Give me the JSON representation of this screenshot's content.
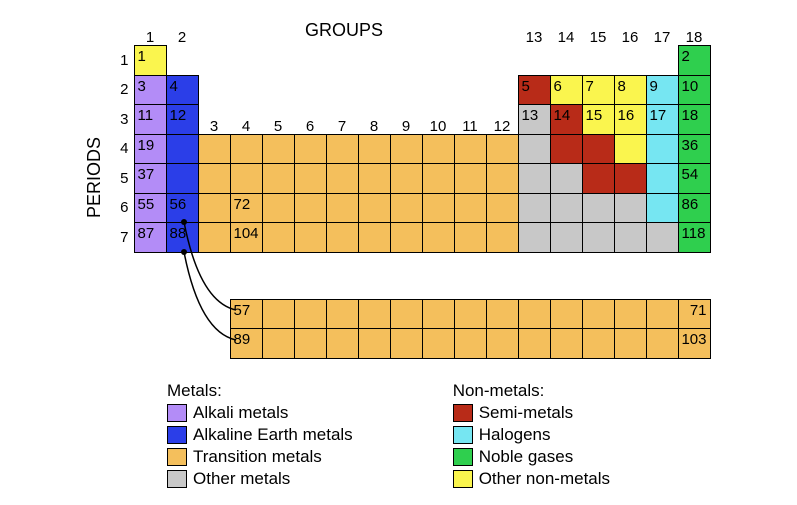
{
  "labels": {
    "groups": "GROUPS",
    "periods": "PERIODS"
  },
  "cell_size": {
    "w": 33,
    "h": 30.5
  },
  "colors": {
    "alkali": "#b38cf7",
    "alkaline": "#2b3ee8",
    "transition": "#f4bf5c",
    "other_metal": "#c8c8c8",
    "semi_metal": "#b82b18",
    "halogen": "#76e6f2",
    "noble": "#2fcf4e",
    "other_nonmetal": "#faf54e",
    "none": "transparent",
    "border": "#000000",
    "bg": "#ffffff",
    "text": "#000000"
  },
  "group_headers": [
    {
      "col": 1,
      "label": "1"
    },
    {
      "col": 2,
      "label": "2"
    },
    {
      "col": 13,
      "label": "13"
    },
    {
      "col": 14,
      "label": "14"
    },
    {
      "col": 15,
      "label": "15"
    },
    {
      "col": 16,
      "label": "16"
    },
    {
      "col": 17,
      "label": "17"
    },
    {
      "col": 18,
      "label": "18"
    }
  ],
  "group_headers_row3": [
    {
      "col": 3,
      "label": "3"
    },
    {
      "col": 4,
      "label": "4"
    },
    {
      "col": 5,
      "label": "5"
    },
    {
      "col": 6,
      "label": "6"
    },
    {
      "col": 7,
      "label": "7"
    },
    {
      "col": 8,
      "label": "8"
    },
    {
      "col": 9,
      "label": "9"
    },
    {
      "col": 10,
      "label": "10"
    },
    {
      "col": 11,
      "label": "11"
    },
    {
      "col": 12,
      "label": "12"
    }
  ],
  "period_headers": [
    "1",
    "2",
    "3",
    "4",
    "5",
    "6",
    "7"
  ],
  "table": [
    [
      {
        "c": "other_nonmetal",
        "t": "1"
      },
      null,
      null,
      null,
      null,
      null,
      null,
      null,
      null,
      null,
      null,
      null,
      null,
      null,
      null,
      null,
      null,
      {
        "c": "noble",
        "t": "2"
      }
    ],
    [
      {
        "c": "alkali",
        "t": "3"
      },
      {
        "c": "alkaline",
        "t": "4"
      },
      null,
      null,
      null,
      null,
      null,
      null,
      null,
      null,
      null,
      null,
      {
        "c": "semi_metal",
        "t": "5"
      },
      {
        "c": "other_nonmetal",
        "t": "6"
      },
      {
        "c": "other_nonmetal",
        "t": "7"
      },
      {
        "c": "other_nonmetal",
        "t": "8"
      },
      {
        "c": "halogen",
        "t": "9"
      },
      {
        "c": "noble",
        "t": "10"
      }
    ],
    [
      {
        "c": "alkali",
        "t": "11"
      },
      {
        "c": "alkaline",
        "t": "12"
      },
      null,
      null,
      null,
      null,
      null,
      null,
      null,
      null,
      null,
      null,
      {
        "c": "other_metal",
        "t": "13"
      },
      {
        "c": "semi_metal",
        "t": "14"
      },
      {
        "c": "other_nonmetal",
        "t": "15"
      },
      {
        "c": "other_nonmetal",
        "t": "16"
      },
      {
        "c": "halogen",
        "t": "17"
      },
      {
        "c": "noble",
        "t": "18"
      }
    ],
    [
      {
        "c": "alkali",
        "t": "19"
      },
      {
        "c": "alkaline",
        "t": ""
      },
      {
        "c": "transition",
        "t": ""
      },
      {
        "c": "transition",
        "t": ""
      },
      {
        "c": "transition",
        "t": ""
      },
      {
        "c": "transition",
        "t": ""
      },
      {
        "c": "transition",
        "t": ""
      },
      {
        "c": "transition",
        "t": ""
      },
      {
        "c": "transition",
        "t": ""
      },
      {
        "c": "transition",
        "t": ""
      },
      {
        "c": "transition",
        "t": ""
      },
      {
        "c": "transition",
        "t": ""
      },
      {
        "c": "other_metal",
        "t": ""
      },
      {
        "c": "semi_metal",
        "t": ""
      },
      {
        "c": "semi_metal",
        "t": ""
      },
      {
        "c": "other_nonmetal",
        "t": ""
      },
      {
        "c": "halogen",
        "t": ""
      },
      {
        "c": "noble",
        "t": "36"
      }
    ],
    [
      {
        "c": "alkali",
        "t": "37"
      },
      {
        "c": "alkaline",
        "t": ""
      },
      {
        "c": "transition",
        "t": ""
      },
      {
        "c": "transition",
        "t": ""
      },
      {
        "c": "transition",
        "t": ""
      },
      {
        "c": "transition",
        "t": ""
      },
      {
        "c": "transition",
        "t": ""
      },
      {
        "c": "transition",
        "t": ""
      },
      {
        "c": "transition",
        "t": ""
      },
      {
        "c": "transition",
        "t": ""
      },
      {
        "c": "transition",
        "t": ""
      },
      {
        "c": "transition",
        "t": ""
      },
      {
        "c": "other_metal",
        "t": ""
      },
      {
        "c": "other_metal",
        "t": ""
      },
      {
        "c": "semi_metal",
        "t": ""
      },
      {
        "c": "semi_metal",
        "t": ""
      },
      {
        "c": "halogen",
        "t": ""
      },
      {
        "c": "noble",
        "t": "54"
      }
    ],
    [
      {
        "c": "alkali",
        "t": "55"
      },
      {
        "c": "alkaline",
        "t": "56"
      },
      {
        "c": "transition",
        "t": ""
      },
      {
        "c": "transition",
        "t": "72"
      },
      {
        "c": "transition",
        "t": ""
      },
      {
        "c": "transition",
        "t": ""
      },
      {
        "c": "transition",
        "t": ""
      },
      {
        "c": "transition",
        "t": ""
      },
      {
        "c": "transition",
        "t": ""
      },
      {
        "c": "transition",
        "t": ""
      },
      {
        "c": "transition",
        "t": ""
      },
      {
        "c": "transition",
        "t": ""
      },
      {
        "c": "other_metal",
        "t": ""
      },
      {
        "c": "other_metal",
        "t": ""
      },
      {
        "c": "other_metal",
        "t": ""
      },
      {
        "c": "other_metal",
        "t": ""
      },
      {
        "c": "halogen",
        "t": ""
      },
      {
        "c": "noble",
        "t": "86"
      }
    ],
    [
      {
        "c": "alkali",
        "t": "87"
      },
      {
        "c": "alkaline",
        "t": "88"
      },
      {
        "c": "transition",
        "t": ""
      },
      {
        "c": "transition",
        "t": "104"
      },
      {
        "c": "transition",
        "t": ""
      },
      {
        "c": "transition",
        "t": ""
      },
      {
        "c": "transition",
        "t": ""
      },
      {
        "c": "transition",
        "t": ""
      },
      {
        "c": "transition",
        "t": ""
      },
      {
        "c": "transition",
        "t": ""
      },
      {
        "c": "transition",
        "t": ""
      },
      {
        "c": "transition",
        "t": ""
      },
      {
        "c": "other_metal",
        "t": ""
      },
      {
        "c": "other_metal",
        "t": ""
      },
      {
        "c": "other_metal",
        "t": ""
      },
      {
        "c": "other_metal",
        "t": ""
      },
      {
        "c": "other_metal",
        "t": ""
      },
      {
        "c": "noble",
        "t": "118"
      }
    ]
  ],
  "fblock": [
    [
      {
        "c": "transition",
        "t": "57"
      },
      {
        "c": "transition",
        "t": ""
      },
      {
        "c": "transition",
        "t": ""
      },
      {
        "c": "transition",
        "t": ""
      },
      {
        "c": "transition",
        "t": ""
      },
      {
        "c": "transition",
        "t": ""
      },
      {
        "c": "transition",
        "t": ""
      },
      {
        "c": "transition",
        "t": ""
      },
      {
        "c": "transition",
        "t": ""
      },
      {
        "c": "transition",
        "t": ""
      },
      {
        "c": "transition",
        "t": ""
      },
      {
        "c": "transition",
        "t": ""
      },
      {
        "c": "transition",
        "t": ""
      },
      {
        "c": "transition",
        "t": ""
      },
      {
        "c": "transition",
        "t": "71",
        "end": true
      }
    ],
    [
      {
        "c": "transition",
        "t": "89"
      },
      {
        "c": "transition",
        "t": ""
      },
      {
        "c": "transition",
        "t": ""
      },
      {
        "c": "transition",
        "t": ""
      },
      {
        "c": "transition",
        "t": ""
      },
      {
        "c": "transition",
        "t": ""
      },
      {
        "c": "transition",
        "t": ""
      },
      {
        "c": "transition",
        "t": ""
      },
      {
        "c": "transition",
        "t": ""
      },
      {
        "c": "transition",
        "t": ""
      },
      {
        "c": "transition",
        "t": ""
      },
      {
        "c": "transition",
        "t": ""
      },
      {
        "c": "transition",
        "t": ""
      },
      {
        "c": "transition",
        "t": ""
      },
      {
        "c": "transition",
        "t": "103",
        "end": true
      }
    ]
  ],
  "legend": {
    "metals": {
      "title": "Metals:",
      "items": [
        {
          "c": "alkali",
          "label": "Alkali metals"
        },
        {
          "c": "alkaline",
          "label": "Alkaline Earth metals"
        },
        {
          "c": "transition",
          "label": "Transition metals"
        },
        {
          "c": "other_metal",
          "label": "Other metals"
        }
      ]
    },
    "nonmetals": {
      "title": "Non-metals:",
      "items": [
        {
          "c": "semi_metal",
          "label": "Semi-metals"
        },
        {
          "c": "halogen",
          "label": "Halogens"
        },
        {
          "c": "noble",
          "label": "Noble gases"
        },
        {
          "c": "other_nonmetal",
          "label": "Other non-metals"
        }
      ]
    }
  },
  "connectors": [
    {
      "from": [
        172,
        210
      ],
      "to": [
        224,
        298
      ],
      "dot": true
    },
    {
      "from": [
        172,
        240
      ],
      "to": [
        224,
        328
      ],
      "dot": true
    }
  ]
}
